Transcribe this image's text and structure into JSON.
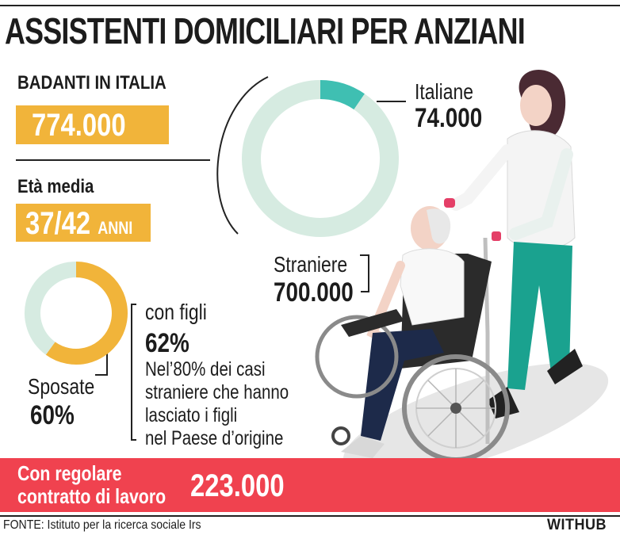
{
  "header": {
    "title": "ASSISTENTI DOMICILIARI PER ANZIANI"
  },
  "badanti": {
    "label": "BADANTI IN ITALIA",
    "value": "774.000"
  },
  "eta_media": {
    "label": "Età media",
    "value": "37/42",
    "unit": "ANNI"
  },
  "origin_breakdown": {
    "italiane_label": "Italiane",
    "italiane_value": "74.000",
    "straniere_label": "Straniere",
    "straniere_value": "700.000"
  },
  "marital": {
    "sposate_label": "Sposate",
    "sposate_value": "60%",
    "figli_label": "con figli",
    "figli_value": "62%",
    "note_lines": [
      "Nel’80% dei casi",
      "straniere che hanno",
      "lasciato i figli",
      "nel Paese d’origine"
    ]
  },
  "contract": {
    "label_lines": [
      "Con regolare",
      "contratto di lavoro"
    ],
    "value": "223.000"
  },
  "footer": {
    "source": "FONTE: Istituto per la ricerca sociale Irs",
    "brand": "WITHUB"
  },
  "colors": {
    "gold": "#f1b43a",
    "teal": "#3fbfb2",
    "mint": "#d6ebe1",
    "red": "#f0424f"
  },
  "chart_data": [
    {
      "type": "pie",
      "variant": "donut",
      "categories": [
        "Italiane",
        "Straniere"
      ],
      "values": [
        74000,
        700000
      ],
      "colors": [
        "#3fbfb2",
        "#d6ebe1"
      ]
    },
    {
      "type": "pie",
      "variant": "donut",
      "categories": [
        "Sposate",
        ""
      ],
      "values": [
        60,
        40
      ],
      "colors": [
        "#f1b43a",
        "#d6ebe1"
      ]
    }
  ]
}
